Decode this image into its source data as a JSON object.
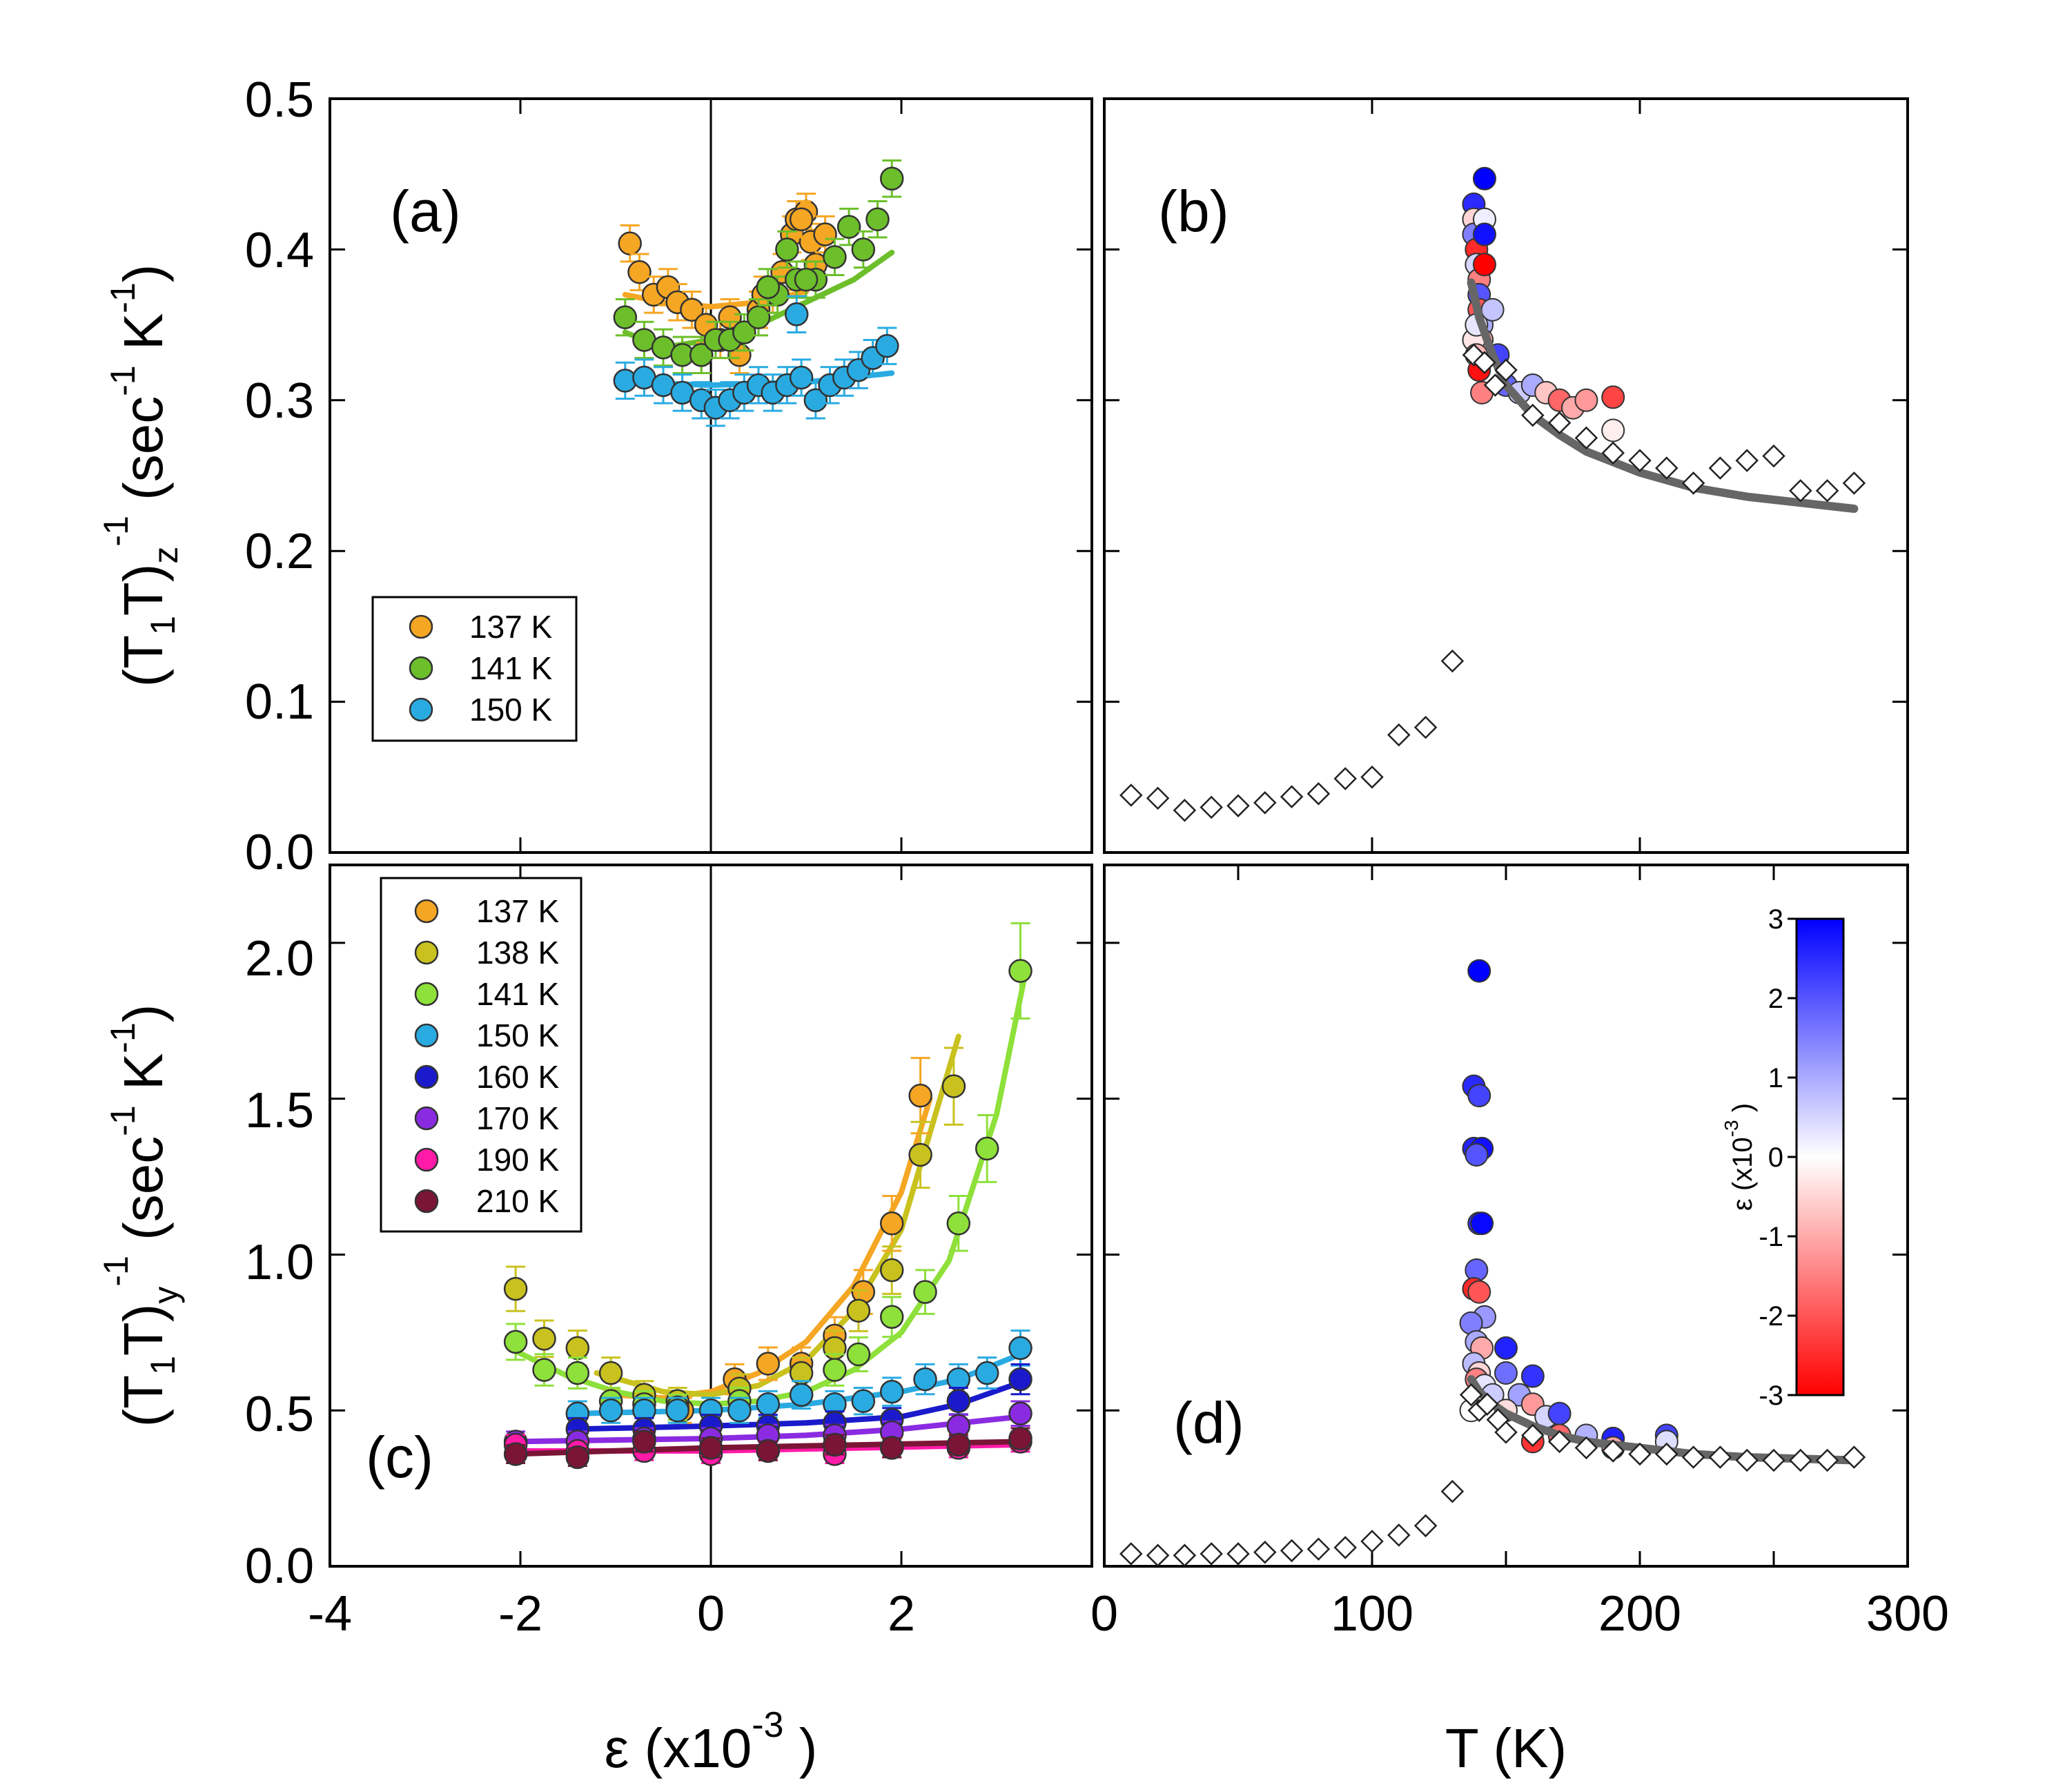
{
  "chart_data": [
    {
      "panel_label": "(a)",
      "type": "scatter",
      "ylabel": {
        "main": "(T",
        "sub1": "1",
        "mid": "T)",
        "sub2": "z",
        "sup": "-1",
        "unit": "(sec",
        "unit_sup1": "-1",
        "unit_K": "K",
        "unit_sup2": "-1",
        "close": ")"
      },
      "xlim": [
        -4,
        4
      ],
      "ylim": [
        0,
        0.5
      ],
      "yticks": [
        "0.0",
        "0.1",
        "0.2",
        "0.3",
        "0.4",
        "0.5"
      ],
      "legend": [
        "137 K",
        "141 K",
        "150 K"
      ],
      "series": [
        {
          "name": "137 K",
          "color": "#f5a623",
          "x": [
            -0.85,
            -0.75,
            -0.6,
            -0.45,
            -0.35,
            -0.2,
            -0.05,
            0.1,
            0.3,
            0.5,
            0.65,
            0.75,
            0.85,
            0.9,
            1.0,
            1.05,
            1.1,
            1.2,
            0.95,
            0.55,
            0.2,
            -0.1
          ],
          "y": [
            0.404,
            0.385,
            0.37,
            0.375,
            0.365,
            0.36,
            0.35,
            0.34,
            0.33,
            0.36,
            0.37,
            0.385,
            0.41,
            0.42,
            0.425,
            0.405,
            0.39,
            0.41,
            0.42,
            0.37,
            0.355,
            0.33
          ]
        },
        {
          "name": "141 K",
          "color": "#6cbf2a",
          "x": [
            -0.9,
            -0.7,
            -0.5,
            -0.3,
            -0.1,
            0.05,
            0.2,
            0.35,
            0.5,
            0.7,
            0.9,
            1.1,
            1.3,
            1.45,
            1.6,
            1.75,
            1.9,
            0.6,
            0.8,
            1.0
          ],
          "y": [
            0.355,
            0.34,
            0.335,
            0.33,
            0.33,
            0.34,
            0.34,
            0.345,
            0.355,
            0.37,
            0.38,
            0.38,
            0.395,
            0.415,
            0.4,
            0.42,
            0.447,
            0.375,
            0.4,
            0.38
          ]
        },
        {
          "name": "150 K",
          "color": "#29abe2",
          "x": [
            -0.9,
            -0.7,
            -0.5,
            -0.3,
            -0.1,
            0.05,
            0.2,
            0.35,
            0.5,
            0.65,
            0.8,
            0.95,
            1.1,
            1.25,
            1.4,
            1.55,
            1.7,
            1.85,
            0.9
          ],
          "y": [
            0.313,
            0.315,
            0.31,
            0.305,
            0.3,
            0.295,
            0.3,
            0.305,
            0.31,
            0.305,
            0.31,
            0.315,
            0.3,
            0.31,
            0.315,
            0.32,
            0.328,
            0.336,
            0.357
          ]
        }
      ],
      "fits": [
        {
          "name": "141 K",
          "color": "#6cbf2a",
          "x": [
            -0.9,
            -0.5,
            0,
            0.5,
            1.0,
            1.5,
            1.9
          ],
          "y": [
            0.345,
            0.335,
            0.34,
            0.35,
            0.365,
            0.38,
            0.398
          ]
        },
        {
          "name": "137 K",
          "color": "#f5a623",
          "x": [
            -0.9,
            -0.5,
            0,
            0.5,
            1.0
          ],
          "y": [
            0.37,
            0.365,
            0.362,
            0.365,
            0.372
          ]
        },
        {
          "name": "150 K",
          "color": "#29abe2",
          "x": [
            -0.9,
            0,
            1.0,
            1.9
          ],
          "y": [
            0.312,
            0.31,
            0.312,
            0.318
          ]
        }
      ]
    },
    {
      "panel_label": "(b)",
      "type": "scatter",
      "xlim": [
        0,
        300
      ],
      "ylim": [
        0,
        0.5
      ],
      "diamonds": {
        "x": [
          10,
          20,
          30,
          40,
          50,
          60,
          70,
          80,
          90,
          100,
          110,
          120,
          130,
          138,
          142,
          146,
          150,
          160,
          170,
          180,
          190,
          200,
          210,
          220,
          230,
          240,
          250,
          260,
          270,
          280
        ],
        "y": [
          0.038,
          0.036,
          0.028,
          0.03,
          0.031,
          0.033,
          0.037,
          0.039,
          0.049,
          0.05,
          0.078,
          0.083,
          0.127,
          0.33,
          0.325,
          0.31,
          0.32,
          0.29,
          0.285,
          0.275,
          0.265,
          0.26,
          0.255,
          0.245,
          0.255,
          0.26,
          0.263,
          0.24,
          0.24,
          0.245
        ]
      },
      "colored": {
        "x": [
          138,
          138,
          138,
          139,
          139,
          140,
          140,
          140,
          141,
          141,
          142,
          142,
          142,
          138,
          139,
          141,
          145,
          147,
          150,
          155,
          160,
          165,
          170,
          175,
          180,
          190,
          190,
          140,
          139,
          142
        ],
        "y": [
          0.43,
          0.42,
          0.41,
          0.4,
          0.39,
          0.38,
          0.37,
          0.36,
          0.35,
          0.34,
          0.447,
          0.42,
          0.41,
          0.34,
          0.33,
          0.305,
          0.36,
          0.33,
          0.31,
          0.305,
          0.31,
          0.305,
          0.3,
          0.295,
          0.3,
          0.302,
          0.28,
          0.32,
          0.35,
          0.39
        ],
        "eps": [
          2.5,
          -0.5,
          1.5,
          -2.5,
          0.5,
          -1.5,
          2.0,
          -2.0,
          1.0,
          -1.0,
          3.0,
          0.2,
          2.8,
          -0.3,
          -0.8,
          -1.5,
          0.7,
          2.2,
          1.8,
          0.6,
          1.0,
          -0.7,
          -1.8,
          -1.0,
          -1.2,
          -2.2,
          -0.2,
          -2.8,
          0.3,
          -3.0
        ]
      },
      "fit": {
        "color": "#666666",
        "x": [
          137,
          140,
          145,
          150,
          160,
          170,
          180,
          200,
          220,
          240,
          260,
          280
        ],
        "y": [
          0.378,
          0.355,
          0.33,
          0.31,
          0.29,
          0.277,
          0.266,
          0.252,
          0.242,
          0.236,
          0.232,
          0.228
        ]
      }
    },
    {
      "panel_label": "(c)",
      "type": "scatter",
      "ylabel": {
        "main": "(T",
        "sub1": "1",
        "mid": "T)",
        "sub2": "y",
        "sup": "-1",
        "unit": "(sec",
        "unit_sup1": "-1",
        "unit_K": "K",
        "unit_sup2": "-1",
        "close": ")"
      },
      "xlabel": {
        "eps": "ε",
        "open": "(x10",
        "sup": "-3",
        "close": ")"
      },
      "xlim": [
        -4,
        4
      ],
      "ylim": [
        0,
        2.25
      ],
      "xticks": [
        "-4",
        "-2",
        "0",
        "2"
      ],
      "yticks": [
        "0.0",
        "0.5",
        "1.0",
        "1.5",
        "2.0"
      ],
      "legend": [
        "137 K",
        "138 K",
        "141 K",
        "150 K",
        "160 K",
        "170 K",
        "190 K",
        "210 K"
      ],
      "series": [
        {
          "name": "137 K",
          "color": "#f5a623",
          "x": [
            -0.3,
            0.25,
            0.6,
            0.95,
            1.3,
            1.6,
            1.9,
            2.2
          ],
          "y": [
            0.5,
            0.6,
            0.65,
            0.65,
            0.74,
            0.88,
            1.1,
            1.51
          ]
        },
        {
          "name": "138 K",
          "color": "#c9c21e",
          "x": [
            -2.05,
            -1.75,
            -1.4,
            -1.05,
            -0.7,
            -0.35,
            0.3,
            0.95,
            1.3,
            1.55,
            1.9,
            2.2,
            2.55
          ],
          "y": [
            0.89,
            0.73,
            0.7,
            0.62,
            0.55,
            0.53,
            0.57,
            0.62,
            0.7,
            0.82,
            0.95,
            1.32,
            1.54
          ]
        },
        {
          "name": "141 K",
          "color": "#8ee03a",
          "x": [
            -2.05,
            -1.75,
            -1.4,
            -1.05,
            -0.7,
            -0.35,
            0.3,
            0.95,
            1.3,
            1.55,
            1.9,
            2.25,
            2.6,
            2.9,
            3.25
          ],
          "y": [
            0.72,
            0.63,
            0.62,
            0.53,
            0.52,
            0.51,
            0.53,
            0.55,
            0.63,
            0.68,
            0.8,
            0.88,
            1.1,
            1.34,
            1.91
          ]
        },
        {
          "name": "150 K",
          "color": "#29abe2",
          "x": [
            -1.4,
            -1.05,
            -0.7,
            -0.35,
            0,
            0.3,
            0.6,
            0.95,
            1.3,
            1.6,
            1.9,
            2.25,
            2.6,
            2.9,
            3.25
          ],
          "y": [
            0.49,
            0.5,
            0.5,
            0.5,
            0.5,
            0.5,
            0.52,
            0.55,
            0.52,
            0.53,
            0.56,
            0.6,
            0.6,
            0.62,
            0.7
          ]
        },
        {
          "name": "160 K",
          "color": "#1a1acc",
          "x": [
            -1.4,
            -0.7,
            0,
            0.6,
            1.3,
            1.9,
            2.6,
            3.25
          ],
          "y": [
            0.44,
            0.44,
            0.45,
            0.45,
            0.46,
            0.47,
            0.53,
            0.6
          ]
        },
        {
          "name": "170 K",
          "color": "#8a2be2",
          "x": [
            -2.05,
            -1.4,
            -0.7,
            0,
            0.6,
            1.3,
            1.9,
            2.6,
            3.25
          ],
          "y": [
            0.4,
            0.4,
            0.41,
            0.41,
            0.42,
            0.42,
            0.43,
            0.45,
            0.49
          ]
        },
        {
          "name": "190 K",
          "color": "#ff1aa8",
          "x": [
            -2.05,
            -1.4,
            -0.7,
            0,
            0.6,
            1.3,
            1.9,
            2.6,
            3.25
          ],
          "y": [
            0.39,
            0.37,
            0.37,
            0.36,
            0.37,
            0.36,
            0.38,
            0.38,
            0.4
          ]
        },
        {
          "name": "210 K",
          "color": "#7a1535",
          "x": [
            -2.05,
            -1.4,
            -0.7,
            0,
            0.6,
            1.3,
            1.9,
            2.6,
            3.25
          ],
          "y": [
            0.36,
            0.35,
            0.4,
            0.38,
            0.37,
            0.39,
            0.38,
            0.39,
            0.41
          ]
        }
      ],
      "fits": [
        {
          "name": "137 K",
          "color": "#f5a623",
          "x": [
            -1.0,
            -0.5,
            0,
            0.5,
            1.0,
            1.5,
            2.0,
            2.3
          ],
          "y": [
            0.55,
            0.54,
            0.56,
            0.62,
            0.72,
            0.9,
            1.2,
            1.5
          ]
        },
        {
          "name": "138 K",
          "color": "#c9c21e",
          "x": [
            -1.2,
            -0.5,
            0,
            0.5,
            1.0,
            1.5,
            2.0,
            2.6
          ],
          "y": [
            0.62,
            0.56,
            0.55,
            0.58,
            0.66,
            0.82,
            1.08,
            1.7
          ]
        },
        {
          "name": "141 K",
          "color": "#8ee03a",
          "x": [
            -2.05,
            -1.5,
            -1.0,
            -0.5,
            0,
            0.5,
            1.0,
            1.5,
            2.0,
            2.5,
            3.0,
            3.3
          ],
          "y": [
            0.69,
            0.61,
            0.56,
            0.53,
            0.52,
            0.53,
            0.56,
            0.63,
            0.75,
            0.98,
            1.45,
            1.9
          ]
        },
        {
          "name": "150 K",
          "color": "#29abe2",
          "x": [
            -1.4,
            0,
            1.0,
            2.0,
            2.6,
            3.25
          ],
          "y": [
            0.49,
            0.5,
            0.52,
            0.56,
            0.6,
            0.68
          ]
        },
        {
          "name": "160 K",
          "color": "#1a1acc",
          "x": [
            -1.4,
            0,
            1.0,
            2.0,
            2.6,
            3.25
          ],
          "y": [
            0.44,
            0.45,
            0.46,
            0.48,
            0.52,
            0.59
          ]
        },
        {
          "name": "170 K",
          "color": "#8a2be2",
          "x": [
            -2.05,
            0,
            1.0,
            2.0,
            3.25
          ],
          "y": [
            0.4,
            0.41,
            0.42,
            0.44,
            0.48
          ]
        },
        {
          "name": "190 K",
          "color": "#ff1aa8",
          "x": [
            -2.05,
            0,
            3.25
          ],
          "y": [
            0.37,
            0.37,
            0.39
          ]
        },
        {
          "name": "210 K",
          "color": "#7a1535",
          "x": [
            -2.05,
            0,
            3.25
          ],
          "y": [
            0.36,
            0.38,
            0.4
          ]
        }
      ]
    },
    {
      "panel_label": "(d)",
      "type": "scatter",
      "xlabel": "T (K)",
      "xlim": [
        0,
        300
      ],
      "ylim": [
        0,
        2.25
      ],
      "xticks": [
        "0",
        "100",
        "200",
        "300"
      ],
      "diamonds": {
        "x": [
          10,
          20,
          30,
          40,
          50,
          60,
          70,
          80,
          90,
          100,
          110,
          120,
          130,
          137,
          140,
          143,
          147,
          150,
          160,
          170,
          180,
          190,
          200,
          210,
          220,
          230,
          240,
          250,
          260,
          270,
          280
        ],
        "y": [
          0.04,
          0.035,
          0.035,
          0.04,
          0.04,
          0.045,
          0.05,
          0.055,
          0.06,
          0.08,
          0.1,
          0.13,
          0.24,
          0.55,
          0.5,
          0.52,
          0.47,
          0.43,
          0.42,
          0.4,
          0.38,
          0.37,
          0.36,
          0.36,
          0.35,
          0.35,
          0.34,
          0.34,
          0.34,
          0.34,
          0.35
        ]
      },
      "colored": {
        "x": [
          140,
          138,
          140,
          138,
          141,
          139,
          140,
          141,
          139,
          138,
          140,
          142,
          137,
          139,
          141,
          138,
          140,
          139,
          142,
          145,
          150,
          150,
          155,
          160,
          160,
          165,
          170,
          170,
          180,
          190,
          190,
          210,
          210,
          150,
          137,
          160
        ],
        "y": [
          1.91,
          1.54,
          1.51,
          1.34,
          1.34,
          1.32,
          1.1,
          1.1,
          0.95,
          0.89,
          0.88,
          0.8,
          0.78,
          0.72,
          0.7,
          0.65,
          0.62,
          0.6,
          0.58,
          0.55,
          0.7,
          0.62,
          0.55,
          0.61,
          0.52,
          0.48,
          0.49,
          0.42,
          0.42,
          0.41,
          0.38,
          0.42,
          0.4,
          0.5,
          0.5,
          0.4
        ],
        "eps": [
          3.0,
          2.5,
          2.2,
          2.6,
          2.8,
          2.0,
          2.4,
          2.9,
          1.8,
          -2.5,
          -2.0,
          1.2,
          1.5,
          1.0,
          -1.0,
          0.8,
          -0.5,
          -1.5,
          0.3,
          0.6,
          2.6,
          1.7,
          1.1,
          2.4,
          -1.2,
          0.5,
          2.2,
          -1.8,
          0.9,
          2.6,
          -1.0,
          2.2,
          0.4,
          -0.4,
          0.0,
          -2.4
        ]
      },
      "fit": {
        "color": "#666666",
        "x": [
          137,
          140,
          145,
          150,
          160,
          170,
          180,
          200,
          220,
          240,
          260,
          280
        ],
        "y": [
          0.6,
          0.56,
          0.52,
          0.49,
          0.45,
          0.42,
          0.4,
          0.38,
          0.36,
          0.35,
          0.345,
          0.34
        ]
      },
      "colorbar": {
        "label": "ε (x10",
        "label_sup": "-3",
        "label_close": ")",
        "ticks": [
          "3",
          "2",
          "1",
          "0",
          "-1",
          "-2",
          "-3"
        ],
        "high": "#0000ff",
        "mid": "#ffffff",
        "low": "#ff0000"
      }
    }
  ]
}
